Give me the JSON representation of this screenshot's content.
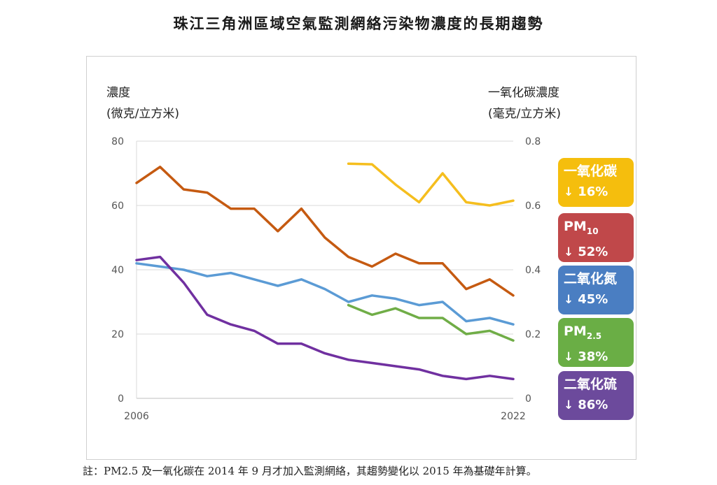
{
  "title": "珠江三角洲區域空氣監測網絡污染物濃度的長期趨勢",
  "left_axis_title": [
    "濃度",
    "(微克/立方米)"
  ],
  "right_axis_title": [
    "一氧化碳濃度",
    "(毫克/立方米)"
  ],
  "badges": [
    {
      "name": "一氧化碳",
      "sub": "",
      "change": "16%",
      "arrow": "down-arrow",
      "color": "#F5BE0D"
    },
    {
      "name": "PM",
      "sub": "10",
      "change": "52%",
      "arrow": "down-arrow",
      "color": "#C0484A"
    },
    {
      "name": "二氧化氮",
      "sub": "",
      "change": "45%",
      "arrow": "down-arrow",
      "color": "#4A7EC2"
    },
    {
      "name": "PM",
      "sub": "2.5",
      "change": "38%",
      "arrow": "down-arrow",
      "color": "#6AAE45"
    },
    {
      "name": "二氧化硫",
      "sub": "",
      "change": "86%",
      "arrow": "down-arrow",
      "color": "#6C4A9C"
    }
  ],
  "note": "註：PM2.5 及一氧化碳在 2014 年 9 月才加入監測網絡，其趨勢變化以 2015 年為基礎年計算。",
  "chart_data": {
    "type": "line",
    "title": "珠江三角洲區域空氣監測網絡污染物濃度的長期趨勢",
    "x": [
      2006,
      2007,
      2008,
      2009,
      2010,
      2011,
      2012,
      2013,
      2014,
      2015,
      2016,
      2017,
      2018,
      2019,
      2020,
      2021,
      2022
    ],
    "x_tick_labels": [
      "2006",
      "2022"
    ],
    "ylabel": "濃度 (微克/立方米)",
    "ylim": [
      0,
      80
    ],
    "y_ticks": [
      0,
      20,
      40,
      60,
      80
    ],
    "y2label": "一氧化碳濃度 (毫克/立方米)",
    "y2lim": [
      0,
      0.8
    ],
    "y2_ticks": [
      0,
      0.2,
      0.4,
      0.6,
      0.8
    ],
    "grid": true,
    "series": [
      {
        "name": "PM10",
        "axis": "left",
        "color": "#C55A11",
        "values": [
          67,
          72,
          65,
          64,
          59,
          59,
          52,
          59,
          50,
          44,
          41,
          45,
          42,
          42,
          34,
          37,
          32
        ]
      },
      {
        "name": "二氧化氮",
        "axis": "left",
        "color": "#5B9BD5",
        "values": [
          42,
          41,
          40,
          38,
          39,
          37,
          35,
          37,
          34,
          30,
          32,
          31,
          29,
          30,
          24,
          25,
          23
        ]
      },
      {
        "name": "二氧化硫",
        "axis": "left",
        "color": "#7030A0",
        "values": [
          43,
          44,
          36,
          26,
          23,
          21,
          17,
          17,
          14,
          12,
          11,
          10,
          9,
          7,
          6,
          7,
          6
        ]
      },
      {
        "name": "PM2.5",
        "axis": "left",
        "color": "#70AD47",
        "values": [
          null,
          null,
          null,
          null,
          null,
          null,
          null,
          null,
          null,
          29,
          26,
          28,
          25,
          25,
          20,
          21,
          18
        ]
      },
      {
        "name": "一氧化碳",
        "axis": "right",
        "color": "#F5BE1E",
        "values": [
          null,
          null,
          null,
          null,
          null,
          null,
          null,
          null,
          null,
          0.73,
          0.728,
          0.665,
          0.61,
          0.7,
          0.61,
          0.6,
          0.615
        ]
      }
    ]
  }
}
